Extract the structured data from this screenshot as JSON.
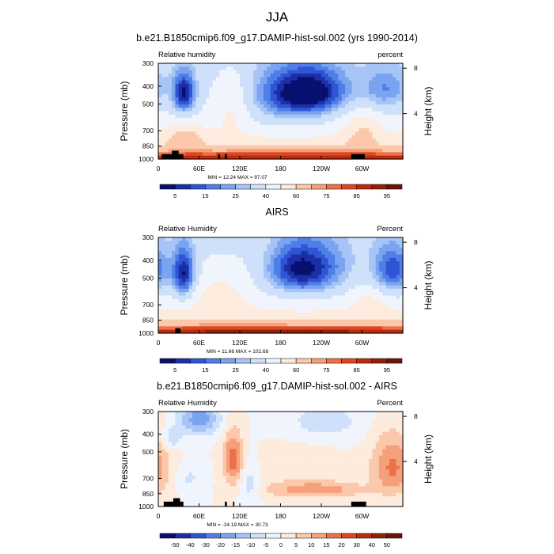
{
  "figure": {
    "main_title": "JJA"
  },
  "chart_data": [
    {
      "type": "heatmap",
      "title": "b.e21.B1850cmip6.f09_g17.DAMIP-hist-sol.002 (yrs 1990-2014)",
      "left_label": "Relative humidity",
      "right_label": "percent",
      "ylabel": "Pressure (mb)",
      "y2label": "Height (km)",
      "xticks": [
        "0",
        "60E",
        "120E",
        "180",
        "120W",
        "60W"
      ],
      "xtick_lon": [
        0,
        60,
        120,
        180,
        240,
        300
      ],
      "xlim": [
        0,
        360
      ],
      "yticks": [
        "300",
        "400",
        "500",
        "700",
        "850",
        "1000"
      ],
      "ytick_p": [
        300,
        400,
        500,
        700,
        850,
        1000
      ],
      "ylim": [
        300,
        1000
      ],
      "y2ticks": [
        "8",
        "4"
      ],
      "y2tick_km": [
        8,
        4
      ],
      "stats": "MIN = 12.24  MAX = 97.07",
      "colorbar": {
        "labels": [
          "5",
          "15",
          "25",
          "40",
          "60",
          "75",
          "85",
          "95"
        ],
        "colors": [
          "#08106f",
          "#1c2fa6",
          "#2f55d4",
          "#4f7ee7",
          "#7aa4ef",
          "#a6c5f6",
          "#cfe0fa",
          "#f0f5fd",
          "#fdebde",
          "#fbc8ab",
          "#f6a07b",
          "#ec7149",
          "#dc4722",
          "#bd2a0c",
          "#912008",
          "#6a1505"
        ]
      },
      "field": {
        "kind": "rh",
        "blobs": [
          {
            "lon": 38,
            "p": 440,
            "slon": 12,
            "sp": 80,
            "a": -35
          },
          {
            "lon": 180,
            "p": 470,
            "slon": 55,
            "sp": 120,
            "a": -18
          },
          {
            "lon": 225,
            "p": 430,
            "slon": 38,
            "sp": 90,
            "a": -32
          },
          {
            "lon": 335,
            "p": 420,
            "slon": 25,
            "sp": 80,
            "a": -18
          },
          {
            "lon": 110,
            "p": 480,
            "slon": 22,
            "sp": 140,
            "a": 16
          },
          {
            "lon": 40,
            "p": 760,
            "slon": 20,
            "sp": 80,
            "a": 16
          },
          {
            "lon": 300,
            "p": 700,
            "slon": 20,
            "sp": 120,
            "a": 14
          },
          {
            "lon": 180,
            "p": 940,
            "slon": 160,
            "sp": 40,
            "a": 8
          }
        ],
        "topo": [
          [
            5,
            20,
            940
          ],
          [
            20,
            30,
            900
          ],
          [
            30,
            37,
            940
          ],
          [
            88,
            91,
            940
          ],
          [
            98,
            101,
            940
          ],
          [
            284,
            304,
            940
          ]
        ]
      }
    },
    {
      "type": "heatmap",
      "title": "AIRS",
      "left_label": "Relative Humidity",
      "right_label": "Percent",
      "ylabel": "Pressure (mb)",
      "y2label": "Height (km)",
      "xticks": [
        "0",
        "60E",
        "120E",
        "180",
        "120W",
        "60W"
      ],
      "xtick_lon": [
        0,
        60,
        120,
        180,
        240,
        300
      ],
      "xlim": [
        0,
        360
      ],
      "yticks": [
        "300",
        "400",
        "500",
        "700",
        "850",
        "1000"
      ],
      "ytick_p": [
        300,
        400,
        500,
        700,
        850,
        1000
      ],
      "ylim": [
        300,
        1000
      ],
      "y2ticks": [
        "8",
        "4"
      ],
      "y2tick_km": [
        8,
        4
      ],
      "stats": "MIN = 11.66  MAX = 102.68",
      "colorbar": {
        "labels": [
          "5",
          "15",
          "25",
          "40",
          "60",
          "75",
          "85",
          "95"
        ],
        "colors": [
          "#08106f",
          "#1c2fa6",
          "#2f55d4",
          "#4f7ee7",
          "#7aa4ef",
          "#a6c5f6",
          "#cfe0fa",
          "#f0f5fd",
          "#fdebde",
          "#fbc8ab",
          "#f6a07b",
          "#ec7149",
          "#dc4722",
          "#bd2a0c",
          "#912008",
          "#6a1505"
        ]
      },
      "field": {
        "kind": "rh",
        "blobs": [
          {
            "lon": 38,
            "p": 480,
            "slon": 12,
            "sp": 110,
            "a": -35
          },
          {
            "lon": 210,
            "p": 450,
            "slon": 45,
            "sp": 110,
            "a": -38
          },
          {
            "lon": 345,
            "p": 460,
            "slon": 22,
            "sp": 100,
            "a": -28
          },
          {
            "lon": 150,
            "p": 420,
            "slon": 30,
            "sp": 120,
            "a": 8
          },
          {
            "lon": 90,
            "p": 600,
            "slon": 30,
            "sp": 150,
            "a": 10
          },
          {
            "lon": 180,
            "p": 950,
            "slon": 170,
            "sp": 40,
            "a": 10
          },
          {
            "lon": 310,
            "p": 650,
            "slon": 18,
            "sp": 120,
            "a": 8
          }
        ],
        "topo": [
          [
            25,
            33,
            940
          ]
        ]
      }
    },
    {
      "type": "heatmap",
      "title": "b.e21.B1850cmip6.f09_g17.DAMIP-hist-sol.002 - AIRS",
      "left_label": "Relative Humidity",
      "right_label": "Percent",
      "ylabel": "Pressure (mb)",
      "y2label": "Height (km)",
      "xticks": [
        "0",
        "60E",
        "120E",
        "180",
        "120W",
        "60W"
      ],
      "xtick_lon": [
        0,
        60,
        120,
        180,
        240,
        300
      ],
      "xlim": [
        0,
        360
      ],
      "yticks": [
        "300",
        "400",
        "500",
        "700",
        "850",
        "1000"
      ],
      "ytick_p": [
        300,
        400,
        500,
        700,
        850,
        1000
      ],
      "ylim": [
        300,
        1000
      ],
      "y2ticks": [
        "8",
        "4"
      ],
      "y2tick_km": [
        8,
        4
      ],
      "stats": "MIN = -24.19  MAX = 30.73",
      "colorbar": {
        "labels": [
          "-50",
          "-40",
          "-30",
          "-20",
          "-15",
          "-10",
          "-5",
          "0",
          "5",
          "10",
          "15",
          "20",
          "30",
          "40",
          "50"
        ],
        "colors": [
          "#08106f",
          "#1c2fa6",
          "#2f55d4",
          "#4f7ee7",
          "#7aa4ef",
          "#a6c5f6",
          "#cfe0fa",
          "#f0f5fd",
          "#fdebde",
          "#fbc8ab",
          "#f6a07b",
          "#ec7149",
          "#dc4722",
          "#bd2a0c",
          "#912008",
          "#6a1505"
        ]
      },
      "field": {
        "kind": "diff",
        "blobs": [
          {
            "lon": 60,
            "p": 330,
            "slon": 22,
            "sp": 50,
            "a": -18
          },
          {
            "lon": 245,
            "p": 340,
            "slon": 40,
            "sp": 60,
            "a": -8
          },
          {
            "lon": 20,
            "p": 420,
            "slon": 10,
            "sp": 40,
            "a": -10
          },
          {
            "lon": 110,
            "p": 550,
            "slon": 10,
            "sp": 130,
            "a": 18
          },
          {
            "lon": 345,
            "p": 610,
            "slon": 22,
            "sp": 160,
            "a": 16
          },
          {
            "lon": 230,
            "p": 810,
            "slon": 50,
            "sp": 60,
            "a": 14
          },
          {
            "lon": 45,
            "p": 700,
            "slon": 15,
            "sp": 90,
            "a": -6
          },
          {
            "lon": 135,
            "p": 770,
            "slon": 10,
            "sp": 150,
            "a": -8
          },
          {
            "lon": 205,
            "p": 600,
            "slon": 40,
            "sp": 100,
            "a": 4
          }
        ],
        "topo": [
          [
            8,
            22,
            940
          ],
          [
            22,
            32,
            900
          ],
          [
            32,
            37,
            940
          ],
          [
            98,
            101,
            940
          ],
          [
            110,
            112,
            940
          ],
          [
            284,
            306,
            940
          ]
        ]
      }
    }
  ]
}
